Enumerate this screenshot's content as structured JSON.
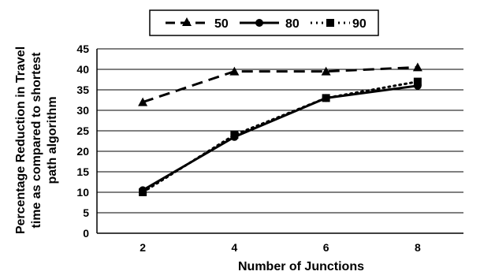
{
  "chart_data": {
    "type": "line",
    "title": "",
    "xlabel": "Number of Junctions",
    "ylabel_lines": [
      "Percentage Reduction in Travel",
      "time as compared to shortest",
      "path algorithm"
    ],
    "x": [
      2,
      4,
      6,
      8
    ],
    "x_ticks": [
      "2",
      "4",
      "6",
      "8"
    ],
    "y_ticks": [
      "0",
      "5",
      "10",
      "15",
      "20",
      "25",
      "30",
      "35",
      "40",
      "45"
    ],
    "ylim": [
      0,
      45
    ],
    "grid": true,
    "legend_position": "top-center",
    "series": [
      {
        "name": "50",
        "values": [
          32,
          39.5,
          39.5,
          40.5
        ],
        "line_style": "dashed",
        "marker": "triangle",
        "color": "#000000"
      },
      {
        "name": "80",
        "values": [
          10.5,
          23.5,
          33,
          36
        ],
        "line_style": "solid",
        "marker": "circle",
        "color": "#000000"
      },
      {
        "name": "90",
        "values": [
          10,
          24,
          33,
          37
        ],
        "line_style": "dotted",
        "marker": "square",
        "color": "#000000"
      }
    ]
  }
}
